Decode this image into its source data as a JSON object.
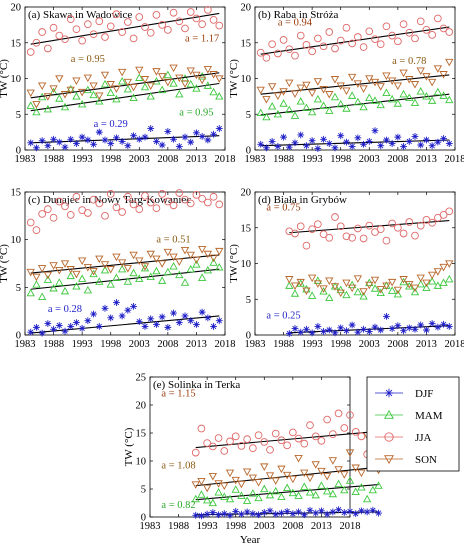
{
  "ylabel": "TW (°C)",
  "xlabel": "Year",
  "legend": [
    {
      "name": "DJF",
      "marker": "star",
      "color": "#1f1fc8"
    },
    {
      "name": "MAM",
      "marker": "triangle-up",
      "color": "#3cc83c"
    },
    {
      "name": "JJA",
      "marker": "circle",
      "color": "#e06868"
    },
    {
      "name": "SON",
      "marker": "triangle-down",
      "color": "#b8662a"
    }
  ],
  "chart_data": [
    {
      "type": "scatter",
      "title": "(a) Skawa in Wadowice",
      "xlim": [
        1983,
        2018
      ],
      "ylim": [
        0,
        20
      ],
      "xticks": [
        "1983",
        "1988",
        "1993",
        "1998",
        "2003",
        "2008",
        "2013",
        "2018"
      ],
      "yticks": [
        "0",
        "5",
        "10",
        "15",
        "20"
      ],
      "x_start": 1984,
      "series": [
        {
          "name": "DJF",
          "trend": [
            1.0,
            2.0
          ],
          "values": [
            1.0,
            0.3,
            1.3,
            0.6,
            1.5,
            1.1,
            0.4,
            1.5,
            0.9,
            1.8,
            1.4,
            0.8,
            2.5,
            1.4,
            0.9,
            1.7,
            1.2,
            0.6,
            2.0,
            1.5,
            1.8,
            3.0,
            1.2,
            0.7,
            2.6,
            1.5,
            0.5,
            1.8,
            1.1,
            2.4,
            1.9,
            1.4,
            2.2,
            3.0
          ]
        },
        {
          "name": "MAM",
          "trend": [
            5.5,
            9.3
          ],
          "values": [
            6.2,
            5.3,
            7.4,
            5.7,
            8.1,
            7.2,
            6.0,
            8.5,
            7.5,
            6.4,
            8.4,
            7.7,
            6.8,
            9.2,
            8.0,
            7.1,
            9.6,
            8.5,
            7.3,
            10.1,
            8.8,
            7.5,
            9.6,
            8.4,
            10.5,
            9.3,
            7.8,
            10.0,
            9.2,
            8.6,
            10.3,
            9.0,
            8.1,
            7.5
          ]
        },
        {
          "name": "SON",
          "trend": [
            7.3,
            10.8
          ],
          "values": [
            8.0,
            6.4,
            9.0,
            7.5,
            8.6,
            10.0,
            7.8,
            8.4,
            9.7,
            8.1,
            10.1,
            9.0,
            7.6,
            10.5,
            9.2,
            8.6,
            10.9,
            9.5,
            8.8,
            11.2,
            9.9,
            9.0,
            11.0,
            10.3,
            9.5,
            11.5,
            10.1,
            9.3,
            11.1,
            10.5,
            9.8,
            11.3,
            10.6,
            10.0
          ]
        },
        {
          "name": "JJA",
          "trend": [
            14.8,
            19.1
          ],
          "values": [
            13.7,
            15.0,
            16.5,
            14.2,
            17.1,
            16.0,
            15.5,
            18.3,
            16.9,
            15.3,
            17.6,
            16.2,
            18.0,
            15.8,
            17.3,
            19.0,
            16.5,
            17.9,
            15.6,
            18.6,
            17.2,
            16.4,
            18.9,
            17.5,
            16.8,
            19.2,
            18.0,
            17.0,
            19.3,
            18.4,
            17.6,
            19.6,
            18.2,
            17.4
          ]
        }
      ],
      "annotations": [
        {
          "text": "a = 1.17",
          "x": 2011,
          "y": 15.2,
          "color": "#9a3a0a"
        },
        {
          "text": "a = 0.95",
          "x": 1991,
          "y": 12.3,
          "color": "#8a5a12"
        },
        {
          "text": "a = 0.95",
          "x": 2010,
          "y": 4.8,
          "color": "#2aa82a"
        },
        {
          "text": "a = 0.29",
          "x": 1995,
          "y": 3.2,
          "color": "#1f1fc8"
        }
      ]
    },
    {
      "type": "scatter",
      "title": "(b) Raba in Stróża",
      "xlim": [
        1983,
        2018
      ],
      "ylim": [
        0,
        20
      ],
      "xticks": [
        "1983",
        "1988",
        "1993",
        "1998",
        "2003",
        "2008",
        "2013",
        "2018"
      ],
      "yticks": [
        "0",
        "5",
        "10",
        "15",
        "20"
      ],
      "x_start": 1984,
      "series": [
        {
          "name": "DJF",
          "trend": [
            0.6,
            1.4
          ],
          "values": [
            0.8,
            0.3,
            1.2,
            0.5,
            1.8,
            0.4,
            1.0,
            2.1,
            0.6,
            1.3,
            0.2,
            1.5,
            0.9,
            0.3,
            2.0,
            1.1,
            0.5,
            1.7,
            0.8,
            1.2,
            2.7,
            0.6,
            1.4,
            0.9,
            1.8,
            0.5,
            1.2,
            1.9,
            0.7,
            1.4,
            0.6,
            1.1,
            1.6,
            0.9
          ]
        },
        {
          "name": "MAM",
          "trend": [
            4.9,
            7.8
          ],
          "values": [
            5.2,
            4.6,
            6.1,
            5.0,
            6.5,
            5.6,
            4.8,
            6.8,
            5.9,
            5.3,
            7.1,
            6.2,
            5.5,
            7.4,
            6.4,
            5.8,
            7.6,
            6.7,
            6.0,
            7.3,
            6.9,
            6.3,
            8.0,
            7.1,
            6.5,
            7.8,
            7.3,
            6.6,
            8.2,
            7.5,
            6.9,
            8.1,
            7.6,
            7.0
          ]
        },
        {
          "name": "SON",
          "trend": [
            7.8,
            10.5
          ],
          "values": [
            8.4,
            7.1,
            8.9,
            7.6,
            8.2,
            9.4,
            7.9,
            8.7,
            9.1,
            8.0,
            9.6,
            8.5,
            7.8,
            9.9,
            9.0,
            8.3,
            10.2,
            9.3,
            8.6,
            10.0,
            9.5,
            8.9,
            10.4,
            9.7,
            9.0,
            10.8,
            9.9,
            9.2,
            11.1,
            10.3,
            9.5,
            11.4,
            10.6,
            12.3
          ]
        },
        {
          "name": "JJA",
          "trend": [
            13.4,
            17.2
          ],
          "values": [
            13.6,
            12.9,
            14.8,
            13.5,
            15.4,
            14.1,
            13.2,
            16.0,
            14.7,
            13.8,
            15.6,
            14.5,
            16.5,
            14.2,
            15.3,
            17.1,
            14.9,
            15.8,
            14.4,
            16.6,
            15.5,
            14.8,
            17.3,
            16.0,
            15.2,
            17.6,
            16.4,
            15.6,
            18.0,
            16.8,
            16.1,
            18.4,
            17.0,
            16.5
          ]
        }
      ],
      "annotations": [
        {
          "text": "a = 0.94",
          "x": 1987,
          "y": 17.4,
          "color": "#9a3a0a"
        },
        {
          "text": "a = 0.78",
          "x": 2007,
          "y": 12.0,
          "color": "#8a5a12"
        }
      ]
    },
    {
      "type": "scatter",
      "title": "(c) Dunajec in Nowy Targ-Kowaniec",
      "xlim": [
        1983,
        2018
      ],
      "ylim": [
        0,
        15
      ],
      "xticks": [
        "1983",
        "1988",
        "1993",
        "1998",
        "2003",
        "2008",
        "2013",
        "2018"
      ],
      "yticks": [
        "0",
        "5",
        "10",
        "15"
      ],
      "x_start": 1984,
      "series": [
        {
          "name": "DJF",
          "trend": [
            0.2,
            2.0
          ],
          "values": [
            0.3,
            0.8,
            0.2,
            1.2,
            0.6,
            1.0,
            0.4,
            0.9,
            1.3,
            0.7,
            1.5,
            2.2,
            0.9,
            2.8,
            1.8,
            3.4,
            2.0,
            2.6,
            3.0,
            1.4,
            0.9,
            1.7,
            1.1,
            1.9,
            0.8,
            2.3,
            1.3,
            2.0,
            1.5,
            1.1,
            2.4,
            1.8,
            0.9,
            1.5
          ]
        },
        {
          "name": "MAM",
          "trend": [
            4.8,
            6.9
          ],
          "values": [
            4.4,
            5.3,
            4.0,
            5.8,
            4.9,
            5.5,
            4.6,
            6.2,
            5.1,
            5.9,
            4.7,
            6.4,
            5.6,
            6.8,
            5.3,
            6.0,
            6.9,
            5.6,
            6.5,
            5.9,
            7.0,
            6.1,
            6.7,
            5.7,
            6.6,
            7.2,
            6.3,
            5.5,
            6.9,
            7.4,
            6.0,
            6.8,
            7.6,
            7.1
          ]
        },
        {
          "name": "SON",
          "trend": [
            6.5,
            8.4
          ],
          "values": [
            6.6,
            6.1,
            7.0,
            6.3,
            7.3,
            6.8,
            7.5,
            6.9,
            6.4,
            7.8,
            7.1,
            6.7,
            8.0,
            7.4,
            6.9,
            8.2,
            7.6,
            7.0,
            8.4,
            7.8,
            7.2,
            8.5,
            8.0,
            7.5,
            8.7,
            8.2,
            7.7,
            8.9,
            8.4,
            7.9,
            9.0,
            8.5,
            8.1,
            8.8
          ]
        },
        {
          "name": "JJA",
          "trend": [
            null,
            null
          ],
          "values": [
            11.8,
            11.0,
            12.7,
            13.2,
            12.3,
            14.0,
            13.5,
            12.6,
            14.5,
            13.1,
            12.8,
            14.2,
            13.8,
            12.5,
            14.8,
            13.4,
            12.9,
            14.5,
            13.7,
            13.2,
            14.6,
            13.9,
            13.3,
            14.8,
            14.0,
            13.6,
            14.9,
            14.2,
            13.8,
            14.7,
            14.3,
            13.9,
            14.5,
            13.7
          ]
        }
      ],
      "annotations": [
        {
          "text": "a = 0.51",
          "x": 2006,
          "y": 9.7,
          "color": "#8a5a12"
        },
        {
          "text": "a = 0.28",
          "x": 1987,
          "y": 2.4,
          "color": "#1f1fc8"
        }
      ]
    },
    {
      "type": "scatter",
      "title": "(d) Biała in Grybów",
      "xlim": [
        1983,
        2018
      ],
      "ylim": [
        0,
        20
      ],
      "xticks": [
        "1983",
        "1988",
        "1993",
        "1998",
        "2003",
        "2008",
        "2013",
        "2018"
      ],
      "yticks": [
        "0",
        "5",
        "10",
        "15",
        "20"
      ],
      "x_start": 1989,
      "series": [
        {
          "name": "DJF",
          "trend": [
            0.3,
            1.3
          ],
          "values": [
            0.2,
            0.9,
            0.4,
            0.8,
            0.3,
            1.2,
            0.5,
            0.7,
            0.3,
            1.0,
            0.6,
            1.4,
            0.4,
            0.8,
            0.5,
            1.1,
            0.7,
            2.6,
            0.9,
            1.3,
            0.6,
            1.0,
            0.8,
            1.4,
            0.7,
            1.6,
            1.1,
            1.5,
            1.2
          ]
        },
        {
          "name": "MAM",
          "trend": [
            null,
            null
          ],
          "values": [
            6.9,
            5.8,
            7.2,
            6.4,
            5.5,
            7.6,
            6.1,
            5.2,
            6.8,
            6.3,
            5.6,
            7.0,
            6.0,
            5.4,
            7.3,
            6.5,
            5.9,
            6.9,
            6.2,
            5.7,
            7.4,
            6.8,
            6.0,
            7.1,
            6.6,
            7.5,
            6.9,
            7.3,
            7.8
          ]
        },
        {
          "name": "SON",
          "trend": [
            null,
            null
          ],
          "values": [
            7.8,
            6.9,
            7.4,
            6.2,
            8.0,
            7.2,
            6.5,
            7.6,
            6.8,
            5.9,
            7.3,
            6.6,
            7.9,
            6.1,
            7.0,
            7.7,
            6.4,
            6.9,
            7.4,
            6.3,
            7.8,
            7.1,
            6.6,
            8.0,
            7.3,
            8.4,
            8.9,
            9.5,
            10.0
          ]
        },
        {
          "name": "JJA",
          "trend": [
            14.3,
            16.0
          ],
          "values": [
            14.5,
            14.2,
            15.2,
            12.5,
            14.8,
            15.5,
            14.1,
            13.6,
            16.5,
            15.2,
            13.8,
            13.6,
            14.9,
            13.5,
            15.3,
            14.4,
            14.8,
            13.2,
            15.6,
            15.0,
            14.2,
            15.8,
            13.9,
            15.3,
            16.1,
            15.7,
            16.4,
            16.8,
            17.3
          ]
        }
      ],
      "annotations": [
        {
          "text": "a = 0.75",
          "x": 1985,
          "y": 17.4,
          "color": "#9a3a0a"
        },
        {
          "text": "a = 0.25",
          "x": 1985,
          "y": 2.3,
          "color": "#1f1fc8"
        }
      ]
    },
    {
      "type": "scatter",
      "title": "(e) Solinka in Terka",
      "xlim": [
        1983,
        2018
      ],
      "ylim": [
        0,
        25
      ],
      "xticks": [
        "1983",
        "1988",
        "1993",
        "1998",
        "2003",
        "2008",
        "2013",
        "2018"
      ],
      "yticks": [
        "0",
        "5",
        "10",
        "15",
        "20",
        "25"
      ],
      "x_start": 1991,
      "series": [
        {
          "name": "DJF",
          "trend": [
            0.4,
            0.9
          ],
          "values": [
            0.3,
            0.2,
            0.5,
            0.8,
            0.4,
            0.6,
            0.3,
            1.0,
            0.5,
            0.9,
            0.6,
            0.4,
            0.8,
            1.1,
            0.5,
            0.7,
            1.0,
            0.6,
            0.9,
            0.4,
            1.2,
            0.7,
            1.1,
            0.5,
            0.9,
            1.3,
            0.8,
            1.0,
            0.6,
            1.1,
            0.9,
            1.2,
            0.7
          ]
        },
        {
          "name": "MAM",
          "trend": [
            3.1,
            5.8
          ],
          "values": [
            3.2,
            4.0,
            3.0,
            2.5,
            4.4,
            3.6,
            3.2,
            4.9,
            3.8,
            2.9,
            4.2,
            3.4,
            5.0,
            3.9,
            4.6,
            3.6,
            5.2,
            4.3,
            3.8,
            5.4,
            4.4,
            3.9,
            5.6,
            4.6,
            4.1,
            5.9,
            4.8,
            6.5,
            4.5,
            5.3,
            3.2,
            4.8,
            5.6
          ]
        },
        {
          "name": "SON",
          "trend": [
            5.6,
            8.9
          ],
          "values": [
            5.8,
            6.4,
            5.2,
            7.3,
            6.0,
            5.6,
            7.9,
            6.6,
            5.9,
            8.1,
            7.0,
            6.2,
            9.0,
            7.4,
            6.5,
            8.6,
            7.5,
            6.8,
            10.5,
            7.9,
            7.0,
            9.4,
            8.2,
            7.3,
            10.1,
            8.5,
            7.6,
            11.5,
            8.8,
            7.9,
            14.6,
            9.6,
            8.4
          ]
        },
        {
          "name": "JJA",
          "trend": [
            12.4,
            15.3
          ],
          "values": [
            11.5,
            15.8,
            13.2,
            12.6,
            14.1,
            11.8,
            13.5,
            14.4,
            12.7,
            13.9,
            12.3,
            14.6,
            13.4,
            12.0,
            14.9,
            13.7,
            12.8,
            15.1,
            14.0,
            13.1,
            16.4,
            14.4,
            13.6,
            17.4,
            14.8,
            18.5,
            15.9,
            18.2,
            15.2,
            14.4,
            11.2,
            15.6,
            11.0
          ]
        }
      ],
      "annotations": [
        {
          "text": "a = 1.15",
          "x": 1985,
          "y": 21.5,
          "color": "#9a3a0a"
        },
        {
          "text": "a = 1.08",
          "x": 1985,
          "y": 8.7,
          "color": "#8a5a12"
        },
        {
          "text": "a = 0.82",
          "x": 1985,
          "y": 1.6,
          "color": "#2aa82a"
        }
      ]
    }
  ]
}
